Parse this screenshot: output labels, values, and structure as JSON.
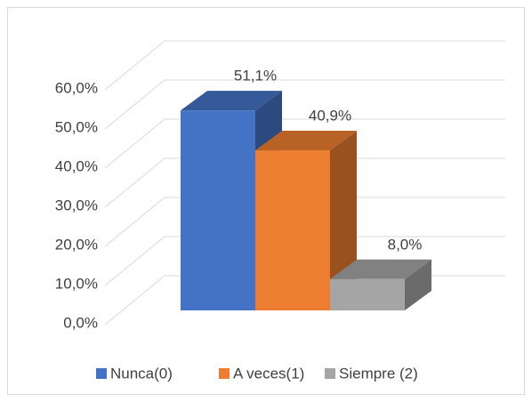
{
  "chart_data": {
    "type": "bar3d",
    "series": [
      {
        "name": "Nunca(0)",
        "color": "#4472c4",
        "values": [
          51.1
        ],
        "value_labels": [
          "51,1%"
        ]
      },
      {
        "name": "A veces(1)",
        "color": "#ed7d31",
        "values": [
          40.9
        ],
        "value_labels": [
          "40,9%"
        ]
      },
      {
        "name": "Siempre (2)",
        "color": "#a5a5a5",
        "values": [
          8.0
        ],
        "value_labels": [
          "8,0%"
        ]
      }
    ],
    "ylim": [
      0,
      60
    ],
    "yticks": [
      {
        "value": 0,
        "label": "0,0%"
      },
      {
        "value": 10,
        "label": "10,0%"
      },
      {
        "value": 20,
        "label": "20,0%"
      },
      {
        "value": 30,
        "label": "30,0%"
      },
      {
        "value": 40,
        "label": "40,0%"
      },
      {
        "value": 50,
        "label": "50,0%"
      },
      {
        "value": 60,
        "label": "60,0%"
      }
    ],
    "grid": true,
    "legend": "bottom"
  }
}
